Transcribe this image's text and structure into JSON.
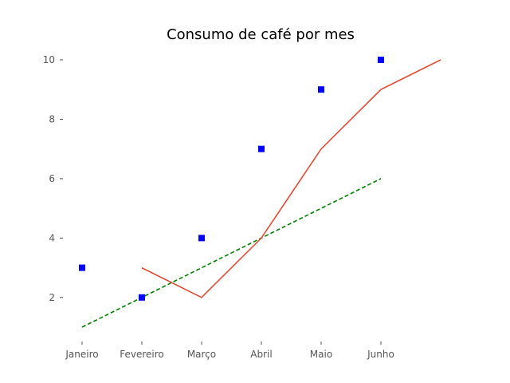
{
  "chart_data": {
    "type": "line",
    "title": "Consumo de café por mes",
    "xlabel": "",
    "ylabel": "",
    "categories": [
      "Janeiro",
      "Fevereiro",
      "Março",
      "Abril",
      "Maio",
      "Junho"
    ],
    "yticks": [
      2,
      4,
      6,
      8,
      10
    ],
    "ylim": [
      0.5,
      10.5
    ],
    "grid": false,
    "series": [
      {
        "type": "scatter",
        "marker": "square",
        "color": "#0000ff",
        "points": [
          [
            0,
            3
          ],
          [
            1,
            2
          ],
          [
            2,
            4
          ],
          [
            3,
            7
          ],
          [
            4,
            9
          ],
          [
            5,
            10
          ]
        ]
      },
      {
        "type": "line",
        "style": "solid",
        "color": "#e24a33",
        "points": [
          [
            1,
            3
          ],
          [
            2,
            2
          ],
          [
            3,
            4
          ],
          [
            4,
            7
          ],
          [
            5,
            9
          ],
          [
            6,
            10
          ]
        ]
      },
      {
        "type": "line",
        "style": "dashed",
        "color": "#008000",
        "points": [
          [
            0,
            1
          ],
          [
            1,
            2
          ],
          [
            2,
            3
          ],
          [
            3,
            4
          ],
          [
            4,
            5
          ],
          [
            5,
            6
          ]
        ]
      }
    ]
  }
}
